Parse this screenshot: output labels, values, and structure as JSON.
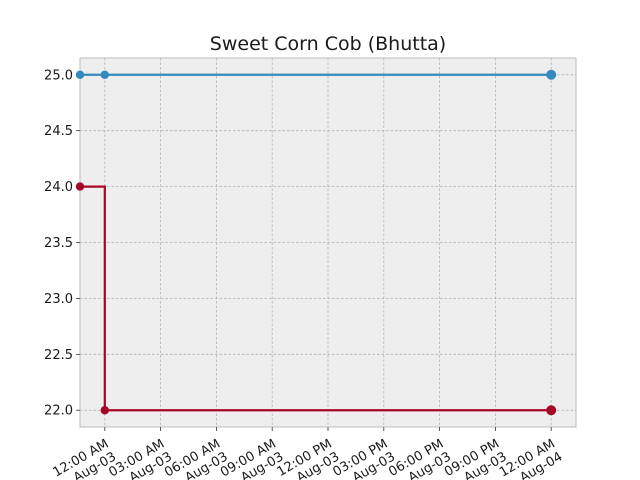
{
  "chart_data": {
    "type": "line",
    "title": "Sweet Corn Cob (Bhutta)",
    "xlabel": "",
    "ylabel": "",
    "step": "post",
    "grid": true,
    "legend": "none",
    "x_ticks": [
      {
        "time": "2024-08-03T00:00",
        "label": "12:00 AM\nAug-03"
      },
      {
        "time": "2024-08-03T03:00",
        "label": "03:00 AM\nAug-03"
      },
      {
        "time": "2024-08-03T06:00",
        "label": "06:00 AM\nAug-03"
      },
      {
        "time": "2024-08-03T09:00",
        "label": "09:00 AM\nAug-03"
      },
      {
        "time": "2024-08-03T12:00",
        "label": "12:00 PM\nAug-03"
      },
      {
        "time": "2024-08-03T15:00",
        "label": "03:00 PM\nAug-03"
      },
      {
        "time": "2024-08-03T18:00",
        "label": "06:00 PM\nAug-03"
      },
      {
        "time": "2024-08-03T21:00",
        "label": "09:00 PM\nAug-03"
      },
      {
        "time": "2024-08-04T00:00",
        "label": "12:00 AM\nAug-04"
      }
    ],
    "xlim": [
      "2024-08-02T22:40",
      "2024-08-04T01:20"
    ],
    "ylim": [
      21.85,
      25.15
    ],
    "y_ticks": [
      "22.0",
      "22.5",
      "23.0",
      "23.5",
      "24.0",
      "24.5",
      "25.0"
    ],
    "series": [
      {
        "color": "#348ABD",
        "points": [
          {
            "x": "2024-08-02T22:40",
            "y": 25.0
          },
          {
            "x": "2024-08-03T00:00",
            "y": 25.0
          },
          {
            "x": "2024-08-04T00:00",
            "y": 25.0
          }
        ]
      },
      {
        "color": "#A60628",
        "points": [
          {
            "x": "2024-08-02T22:40",
            "y": 24.0
          },
          {
            "x": "2024-08-03T00:00",
            "y": 22.0
          },
          {
            "x": "2024-08-04T00:00",
            "y": 22.0
          }
        ]
      }
    ]
  }
}
